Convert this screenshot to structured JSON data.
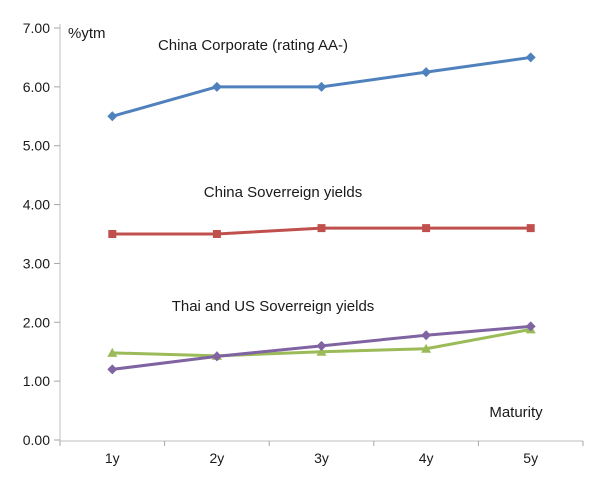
{
  "chart_data": {
    "type": "line",
    "title": "",
    "ylabel": "%ytm",
    "xlabel": "Maturity",
    "categories": [
      "1y",
      "2y",
      "3y",
      "4y",
      "5y"
    ],
    "y_ticks": [
      "0.00",
      "1.00",
      "2.00",
      "3.00",
      "4.00",
      "5.00",
      "6.00",
      "7.00"
    ],
    "ylim": [
      0,
      7
    ],
    "grid": false,
    "legend_position": "none",
    "background_color": "#ffffff",
    "axis_color": "#bfbfbf",
    "tick_color": "#a6a6a6",
    "text_color": "#1a1a1a",
    "series": [
      {
        "id": "china-corporate",
        "name": "China Corporate (rating AA-)",
        "color": "#4F81BD",
        "marker": "diamond",
        "values": [
          5.5,
          6.0,
          6.0,
          6.25,
          6.5
        ]
      },
      {
        "id": "china-sovereign",
        "name": "China Soverreign yields",
        "color": "#C0504D",
        "marker": "square",
        "values": [
          3.5,
          3.5,
          3.6,
          3.6,
          3.6
        ]
      },
      {
        "id": "thai-us-sovereign-green",
        "name": "Thai and US Soverreign yields (green)",
        "color": "#9BBB59",
        "marker": "triangle",
        "values": [
          1.48,
          1.43,
          1.5,
          1.55,
          1.88
        ]
      },
      {
        "id": "thai-us-sovereign-purple",
        "name": "Thai and US Soverreign yields (purple)",
        "color": "#8064A2",
        "marker": "diamond",
        "values": [
          1.2,
          1.42,
          1.6,
          1.78,
          1.93
        ]
      }
    ],
    "annotations": [
      {
        "id": "label-china-corporate",
        "text": "China Corporate (rating AA-)"
      },
      {
        "id": "label-china-sovereign",
        "text": "China Soverreign yields"
      },
      {
        "id": "label-thai-us",
        "text": "Thai and US Soverreign yields"
      },
      {
        "id": "label-maturity",
        "text": "Maturity"
      },
      {
        "id": "label-ytm",
        "text": "%ytm"
      }
    ]
  }
}
